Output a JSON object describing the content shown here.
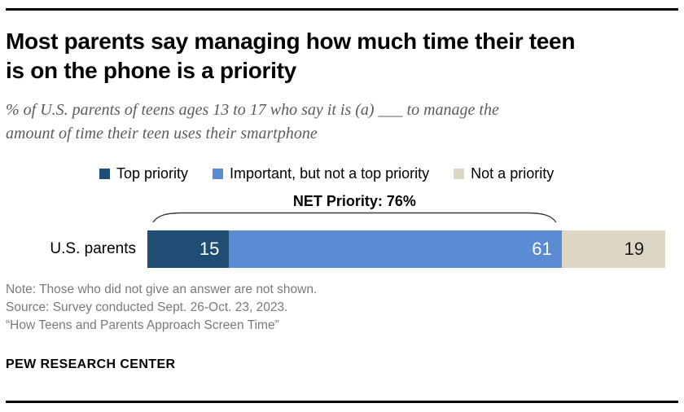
{
  "header": {
    "title": "Most parents say managing how much time their teen\nis on the phone is a priority",
    "subtitle": "% of U.S. parents of teens ages 13 to 17 who say it is (a) ___ to manage the\namount of time their teen uses their smartphone"
  },
  "chart_data": {
    "type": "bar",
    "orientation": "horizontal_stacked",
    "categories": [
      "U.S. parents"
    ],
    "series": [
      {
        "name": "Top priority",
        "values": [
          15
        ],
        "color": "#1f4d73",
        "text_color": "#ffffff"
      },
      {
        "name": "Important, but not a top priority",
        "values": [
          61
        ],
        "color": "#5a8bd3",
        "text_color": "#ffffff"
      },
      {
        "name": "Not a priority",
        "values": [
          19
        ],
        "color": "#dcd7c5",
        "text_color": "#1a1a1a"
      }
    ],
    "total_shown": 95,
    "annotations": [
      {
        "text": "NET Priority: 76%",
        "value": 76,
        "spans_series": [
          "Top priority",
          "Important, but not a top priority"
        ]
      }
    ],
    "value_labels_shown": true,
    "legend_position": "top"
  },
  "footer": {
    "note": "Note: Those who did not give an answer are not shown.",
    "source": "Source: Survey conducted Sept. 26-Oct. 23, 2023.",
    "quote": "“How Teens and Parents Approach Screen Time”",
    "brand": "PEW RESEARCH CENTER"
  }
}
